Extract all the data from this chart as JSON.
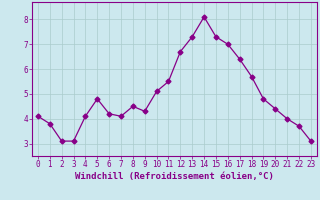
{
  "x": [
    0,
    1,
    2,
    3,
    4,
    5,
    6,
    7,
    8,
    9,
    10,
    11,
    12,
    13,
    14,
    15,
    16,
    17,
    18,
    19,
    20,
    21,
    22,
    23
  ],
  "y": [
    4.1,
    3.8,
    3.1,
    3.1,
    4.1,
    4.8,
    4.2,
    4.1,
    4.5,
    4.3,
    5.1,
    5.5,
    6.7,
    7.3,
    8.1,
    7.3,
    7.0,
    6.4,
    5.7,
    4.8,
    4.4,
    4.0,
    3.7,
    3.1
  ],
  "line_color": "#880088",
  "marker": "D",
  "marker_size": 2.5,
  "background_color": "#cce8ee",
  "grid_color": "#aacccc",
  "axis_color": "#880088",
  "xlabel": "Windchill (Refroidissement éolien,°C)",
  "xlabel_fontsize": 6.5,
  "ytick_labels": [
    "3",
    "4",
    "5",
    "6",
    "7",
    "8"
  ],
  "ytick_values": [
    3,
    4,
    5,
    6,
    7,
    8
  ],
  "ylim": [
    2.5,
    8.7
  ],
  "xlim": [
    -0.5,
    23.5
  ],
  "tick_color": "#880088",
  "tick_fontsize": 5.5,
  "linewidth": 0.9
}
